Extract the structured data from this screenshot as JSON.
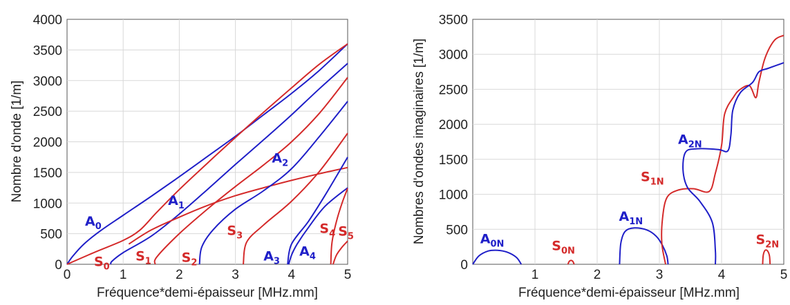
{
  "colors": {
    "antisymmetric": "#1f1fc8",
    "symmetric": "#d42a2a"
  },
  "chart_data": [
    {
      "type": "line",
      "xlabel": "Fréquence*demi-épaisseur [MHz.mm]",
      "ylabel": "Nombre d'onde [1/m]",
      "xlim": [
        0,
        5
      ],
      "ylim": [
        0,
        4000
      ],
      "xticks": [
        "0",
        "1",
        "2",
        "3",
        "4",
        "5"
      ],
      "yticks": [
        "0",
        "500",
        "1000",
        "1500",
        "2000",
        "2500",
        "3000",
        "3500",
        "4000"
      ],
      "grid": true,
      "series": [
        {
          "name": "A0",
          "label_main": "A",
          "label_sub": "0",
          "color": "#1f1fc8",
          "x": [
            0,
            0.1,
            0.3,
            0.6,
            1,
            1.5,
            2,
            2.5,
            3,
            3.5,
            4,
            4.5,
            5
          ],
          "y": [
            0,
            130,
            330,
            550,
            800,
            1110,
            1430,
            1760,
            2090,
            2440,
            2790,
            3170,
            3600
          ]
        },
        {
          "name": "S0",
          "label_main": "S",
          "label_sub": "0",
          "color": "#d42a2a",
          "x": [
            0,
            0.5,
            1,
            1.3,
            1.6,
            2,
            2.5,
            3,
            3.5,
            4,
            4.5,
            5
          ],
          "y": [
            0,
            200,
            390,
            560,
            850,
            1220,
            1650,
            2070,
            2480,
            2880,
            3270,
            3600
          ]
        },
        {
          "name": "A1",
          "label_main": "A",
          "label_sub": "1",
          "color": "#1f1fc8",
          "x": [
            0.78,
            0.8,
            1,
            1.5,
            2,
            2.5,
            3,
            3.5,
            4,
            4.5,
            5
          ],
          "y": [
            0,
            50,
            190,
            460,
            820,
            1220,
            1630,
            2030,
            2440,
            2870,
            3280
          ]
        },
        {
          "name": "S1",
          "label_main": "S",
          "label_sub": "1",
          "color": "#d42a2a",
          "x": [
            1.57,
            1.6,
            2,
            2.5,
            3,
            3.5,
            4,
            4.5,
            5
          ],
          "y": [
            0,
            120,
            500,
            900,
            1270,
            1620,
            2000,
            2470,
            3050
          ]
        },
        {
          "name": "S-plate",
          "label_main": "",
          "label_sub": "",
          "color": "#d42a2a",
          "x": [
            1.1,
            1.5,
            2,
            2.5,
            3,
            3.5,
            4,
            4.5,
            5
          ],
          "y": [
            330,
            560,
            770,
            960,
            1120,
            1250,
            1370,
            1480,
            1580
          ]
        },
        {
          "name": "A2",
          "label_main": "A",
          "label_sub": "2",
          "color": "#1f1fc8",
          "x": [
            2.36,
            2.4,
            2.6,
            3,
            3.5,
            4,
            4.5,
            5
          ],
          "y": [
            0,
            280,
            560,
            900,
            1200,
            1560,
            2090,
            2660
          ]
        },
        {
          "name": "S3",
          "label_main": "S",
          "label_sub": "3",
          "color": "#d42a2a",
          "x": [
            3.14,
            3.2,
            3.5,
            4,
            4.5,
            5
          ],
          "y": [
            0,
            360,
            640,
            1030,
            1520,
            2140
          ]
        },
        {
          "name": "A3",
          "label_main": "A",
          "label_sub": "3",
          "color": "#1f1fc8",
          "x": [
            3.93,
            4.0,
            4.3,
            4.6,
            5
          ],
          "y": [
            0,
            330,
            700,
            1130,
            1750
          ]
        },
        {
          "name": "A4",
          "label_main": "A",
          "label_sub": "4",
          "color": "#1f1fc8",
          "x": [
            3.95,
            4.0,
            4.1,
            4.3,
            4.6,
            5
          ],
          "y": [
            0,
            150,
            330,
            600,
            950,
            1250
          ]
        },
        {
          "name": "S4",
          "label_main": "S",
          "label_sub": "4",
          "color": "#d42a2a",
          "x": [
            4.7,
            4.72,
            4.8,
            4.9,
            5
          ],
          "y": [
            0,
            350,
            700,
            1000,
            1240
          ]
        },
        {
          "name": "S5",
          "label_main": "S",
          "label_sub": "5",
          "color": "#d42a2a",
          "x": [
            4.74,
            4.8,
            4.9,
            5
          ],
          "y": [
            0,
            150,
            280,
            380
          ]
        }
      ],
      "labels": [
        {
          "main": "A",
          "sub": "0",
          "color": "#1f1fc8",
          "x": 0.32,
          "y": 630
        },
        {
          "main": "S",
          "sub": "0",
          "color": "#d42a2a",
          "x": 0.48,
          "y": -30
        },
        {
          "main": "A",
          "sub": "1",
          "color": "#1f1fc8",
          "x": 1.8,
          "y": 970
        },
        {
          "main": "S",
          "sub": "1",
          "color": "#d42a2a",
          "x": 1.22,
          "y": 60
        },
        {
          "main": "A",
          "sub": "2",
          "color": "#1f1fc8",
          "x": 3.65,
          "y": 1660
        },
        {
          "main": "S",
          "sub": "2",
          "color": "#d42a2a",
          "x": 2.04,
          "y": 40
        },
        {
          "main": "S",
          "sub": "3",
          "color": "#d42a2a",
          "x": 2.85,
          "y": 480
        },
        {
          "main": "A",
          "sub": "3",
          "color": "#1f1fc8",
          "x": 3.5,
          "y": 60
        },
        {
          "main": "A",
          "sub": "4",
          "color": "#1f1fc8",
          "x": 4.14,
          "y": 140
        },
        {
          "main": "S",
          "sub": "4",
          "color": "#d42a2a",
          "x": 4.5,
          "y": 510
        },
        {
          "main": "S",
          "sub": "5",
          "color": "#d42a2a",
          "x": 4.83,
          "y": 470
        }
      ]
    },
    {
      "type": "line",
      "xlabel": "Fréquence*demi-épaisseur [MHz.mm]",
      "ylabel": "Nombres d'ondes imaginaires [1/m]",
      "xlim": [
        0,
        5
      ],
      "ylim": [
        0,
        3500
      ],
      "xticks": [
        "",
        "1",
        "2",
        "3",
        "4",
        "5"
      ],
      "yticks": [
        "0",
        "500",
        "1000",
        "1500",
        "2000",
        "2500",
        "3000",
        "3500"
      ],
      "grid": true,
      "series": [
        {
          "name": "A0N",
          "color": "#1f1fc8",
          "x": [
            0,
            0.1,
            0.25,
            0.4,
            0.55,
            0.7,
            0.78
          ],
          "y": [
            0,
            120,
            190,
            200,
            175,
            100,
            0
          ]
        },
        {
          "name": "S0N",
          "color": "#d42a2a",
          "x": [
            1.53,
            1.55,
            1.58,
            1.61,
            1.63
          ],
          "y": [
            0,
            40,
            55,
            40,
            0
          ]
        },
        {
          "name": "A1N",
          "color": "#1f1fc8",
          "x": [
            2.36,
            2.38,
            2.45,
            2.6,
            2.8,
            2.95,
            3.05,
            3.12,
            3.14
          ],
          "y": [
            0,
            300,
            470,
            520,
            490,
            400,
            270,
            120,
            0
          ]
        },
        {
          "name": "S1N",
          "color": "#d42a2a",
          "x": [
            3.1,
            3.04,
            3.05,
            3.12,
            3.3,
            3.55,
            3.8,
            3.9,
            4.0,
            4.05,
            4.2,
            4.3,
            4.45,
            4.55,
            4.6,
            4.7,
            4.85,
            5
          ],
          "y": [
            0,
            300,
            650,
            950,
            1060,
            1080,
            1040,
            1300,
            1700,
            2150,
            2400,
            2500,
            2550,
            2380,
            2600,
            2950,
            3200,
            3270
          ]
        },
        {
          "name": "A2N",
          "color": "#1f1fc8",
          "x": [
            3.9,
            3.9,
            3.85,
            3.65,
            3.45,
            3.38,
            3.42,
            3.6,
            3.95,
            4.1,
            4.15,
            4.18,
            4.3,
            4.5,
            4.6,
            4.75,
            5
          ],
          "y": [
            0,
            200,
            600,
            900,
            1100,
            1350,
            1600,
            1650,
            1640,
            1620,
            1850,
            2200,
            2450,
            2600,
            2750,
            2800,
            2880
          ]
        },
        {
          "name": "S2N",
          "color": "#d42a2a",
          "x": [
            4.66,
            4.67,
            4.7,
            4.74,
            4.77,
            4.78
          ],
          "y": [
            0,
            130,
            200,
            190,
            120,
            0
          ]
        }
      ],
      "labels": [
        {
          "main": "A",
          "sub": "0N",
          "color": "#1f1fc8",
          "x": 0.12,
          "y": 300
        },
        {
          "main": "S",
          "sub": "0N",
          "color": "#d42a2a",
          "x": 1.27,
          "y": 200
        },
        {
          "main": "A",
          "sub": "1N",
          "color": "#1f1fc8",
          "x": 2.35,
          "y": 620
        },
        {
          "main": "S",
          "sub": "1N",
          "color": "#d42a2a",
          "x": 2.7,
          "y": 1190
        },
        {
          "main": "A",
          "sub": "2N",
          "color": "#1f1fc8",
          "x": 3.3,
          "y": 1720
        },
        {
          "main": "S",
          "sub": "2N",
          "color": "#d42a2a",
          "x": 4.55,
          "y": 290
        }
      ]
    }
  ]
}
